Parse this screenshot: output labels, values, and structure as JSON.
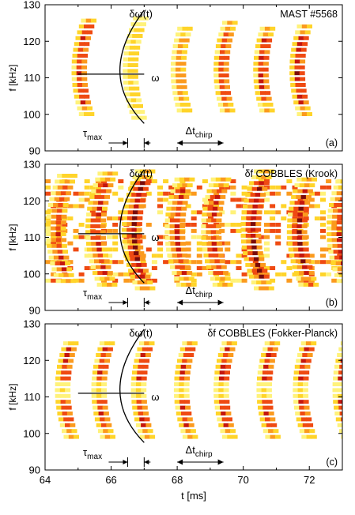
{
  "chart_data": [
    {
      "type": "heatmap",
      "panel_label": "(a)",
      "title": "MAST #5568",
      "ylabel": "f [kHz]",
      "xlim": [
        64,
        73
      ],
      "ylim": [
        90,
        130
      ],
      "yticks": [
        90,
        100,
        110,
        120,
        130
      ],
      "bursts": [
        {
          "t": 65.0,
          "f_top": 126,
          "f_bottom": 99,
          "intensity": 0.85
        },
        {
          "t": 66.55,
          "f_top": 126,
          "f_bottom": 98,
          "intensity": 0.35
        },
        {
          "t": 68.0,
          "f_top": 123,
          "f_bottom": 100,
          "intensity": 0.55
        },
        {
          "t": 69.3,
          "f_top": 124,
          "f_bottom": 100,
          "intensity": 0.8
        },
        {
          "t": 70.5,
          "f_top": 123,
          "f_bottom": 100,
          "intensity": 0.85
        },
        {
          "t": 71.6,
          "f_top": 124,
          "f_bottom": 99,
          "intensity": 1.0
        }
      ],
      "annotations": {
        "domega": "δω(t)",
        "omega": "ω",
        "tau": "τ",
        "tau_sub": "max",
        "dt": "Δt",
        "dt_sub": "chirp"
      }
    },
    {
      "type": "heatmap",
      "panel_label": "(b)",
      "title": "δf COBBLES (Krook)",
      "ylabel": "f [kHz]",
      "xlim": [
        64,
        73
      ],
      "ylim": [
        90,
        130
      ],
      "yticks": [
        90,
        100,
        110,
        120,
        130
      ],
      "bursts": [
        {
          "t": 64.3,
          "f_top": 126,
          "f_bottom": 97,
          "intensity": 0.7
        },
        {
          "t": 65.5,
          "f_top": 127,
          "f_bottom": 96,
          "intensity": 0.8
        },
        {
          "t": 66.6,
          "f_top": 127,
          "f_bottom": 95,
          "intensity": 0.95
        },
        {
          "t": 67.9,
          "f_top": 126,
          "f_bottom": 96,
          "intensity": 0.8
        },
        {
          "t": 69.0,
          "f_top": 126,
          "f_bottom": 96,
          "intensity": 0.8
        },
        {
          "t": 70.2,
          "f_top": 127,
          "f_bottom": 95,
          "intensity": 0.95
        },
        {
          "t": 71.6,
          "f_top": 126,
          "f_bottom": 96,
          "intensity": 0.9
        },
        {
          "t": 72.8,
          "f_top": 125,
          "f_bottom": 97,
          "intensity": 0.8
        }
      ],
      "annotations": {
        "domega": "δω(t)",
        "omega": "ω",
        "tau": "τ",
        "tau_sub": "max",
        "dt": "Δt",
        "dt_sub": "chirp"
      }
    },
    {
      "type": "heatmap",
      "panel_label": "(c)",
      "title": "δf COBBLES (Fokker-Planck)",
      "ylabel": "f [kHz]",
      "xlabel": "t [ms]",
      "xlim": [
        64,
        73
      ],
      "ylim": [
        90,
        130
      ],
      "yticks": [
        90,
        100,
        110,
        120,
        130
      ],
      "xticks": [
        64,
        66,
        68,
        70,
        72
      ],
      "bursts": [
        {
          "t": 64.5,
          "f_top": 125,
          "f_bottom": 98,
          "intensity": 0.85
        },
        {
          "t": 65.6,
          "f_top": 125,
          "f_bottom": 98,
          "intensity": 0.85
        },
        {
          "t": 66.8,
          "f_top": 125,
          "f_bottom": 98,
          "intensity": 0.85
        },
        {
          "t": 68.1,
          "f_top": 125,
          "f_bottom": 98,
          "intensity": 0.85
        },
        {
          "t": 69.3,
          "f_top": 125,
          "f_bottom": 98,
          "intensity": 0.85
        },
        {
          "t": 70.6,
          "f_top": 125,
          "f_bottom": 98,
          "intensity": 0.85
        },
        {
          "t": 71.7,
          "f_top": 125,
          "f_bottom": 98,
          "intensity": 0.85
        },
        {
          "t": 72.9,
          "f_top": 125,
          "f_bottom": 98,
          "intensity": 0.85
        }
      ],
      "annotations": {
        "domega": "δω(t)",
        "omega": "ω",
        "tau": "τ",
        "tau_sub": "max",
        "dt": "Δt",
        "dt_sub": "chirp"
      }
    }
  ]
}
